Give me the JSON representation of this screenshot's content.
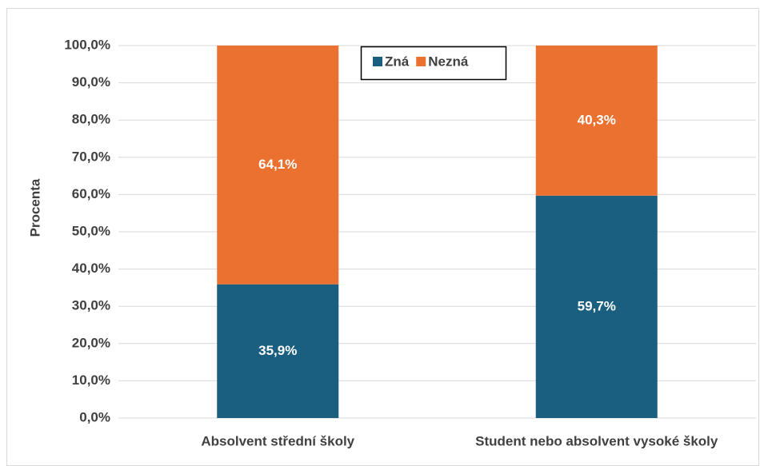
{
  "chart_data": {
    "type": "stacked_bar",
    "ylabel": "Procenta",
    "categories": [
      "Absolvent střední školy",
      "Student nebo absolvent vysoké školy"
    ],
    "series": [
      {
        "name": "Zná",
        "color": "#1a5e80",
        "values": [
          35.9,
          59.7
        ],
        "value_labels": [
          "35,9%",
          "59,7%"
        ]
      },
      {
        "name": "Nezná",
        "color": "#ea7130",
        "values": [
          64.1,
          40.3
        ],
        "value_labels": [
          "64,1%",
          "40,3%"
        ]
      }
    ],
    "ylim": [
      0,
      100
    ],
    "yticks": [
      {
        "value": 0,
        "label": "0,0%"
      },
      {
        "value": 10,
        "label": "10,0%"
      },
      {
        "value": 20,
        "label": "20,0%"
      },
      {
        "value": 30,
        "label": "30,0%"
      },
      {
        "value": 40,
        "label": "40,0%"
      },
      {
        "value": 50,
        "label": "50,0%"
      },
      {
        "value": 60,
        "label": "60,0%"
      },
      {
        "value": 70,
        "label": "70,0%"
      },
      {
        "value": 80,
        "label": "80,0%"
      },
      {
        "value": 90,
        "label": "90,0%"
      },
      {
        "value": 100,
        "label": "100,0%"
      }
    ],
    "grid": true,
    "legend": "top"
  }
}
